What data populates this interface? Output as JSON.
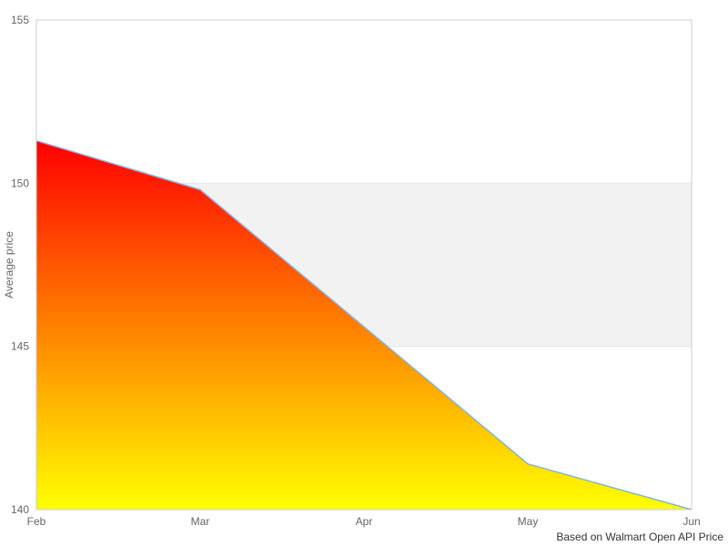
{
  "chart_data": {
    "type": "area",
    "title": "",
    "categories": [
      "Feb",
      "Mar",
      "Apr",
      "May",
      "Jun"
    ],
    "series": [
      {
        "name": "Average price",
        "values": [
          151.3,
          149.8,
          145.6,
          141.4,
          140.0
        ]
      }
    ],
    "xlabel": "",
    "ylabel": "Average price",
    "ylim": [
      140,
      155
    ],
    "yticks": [
      140,
      145,
      150,
      155
    ],
    "grid": true,
    "legend_position": "none",
    "plot_band": {
      "from": 145,
      "to": 150,
      "color": "#f2f2f2"
    },
    "caption": "Based on Walmart Open API Price",
    "colors": {
      "line": "#7cb5ec",
      "area_top": "#ff0000",
      "area_bottom": "#ffff00",
      "grid": "#e6e6e6",
      "plot_border": "#cccccc",
      "tick_label": "#666666",
      "axis_title": "#666666",
      "caption": "#333333",
      "background": "#ffffff"
    }
  }
}
